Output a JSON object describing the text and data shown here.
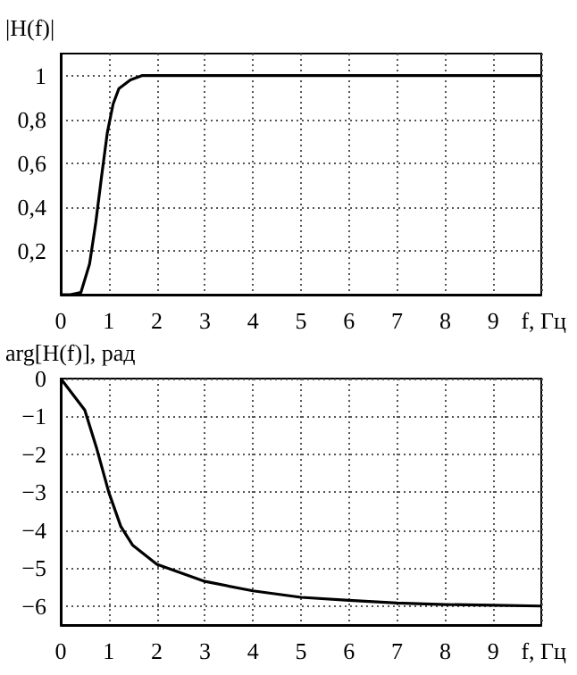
{
  "chart_data": [
    {
      "type": "line",
      "ylabel": "|H(f)|",
      "xlabel": "f, Гц",
      "grid": true,
      "x": [
        0,
        0.2,
        0.42,
        0.6,
        0.73,
        0.85,
        0.97,
        1.09,
        1.21,
        1.45,
        1.7,
        2,
        10
      ],
      "series": [
        {
          "color": "#000000",
          "values": [
            0,
            0,
            0.01,
            0.14,
            0.33,
            0.54,
            0.74,
            0.87,
            0.94,
            0.98,
            1.0,
            1.0,
            1.0
          ]
        }
      ],
      "xlim": [
        0,
        10
      ],
      "xticks": [
        0,
        1,
        2,
        3,
        4,
        5,
        6,
        7,
        8,
        9,
        {
          "value": 10,
          "label": null
        }
      ],
      "ylim": [
        0,
        1.1
      ],
      "yticks": [
        {
          "value": 0,
          "label": null
        },
        {
          "value": 0.2,
          "label": "0,2"
        },
        {
          "value": 0.4,
          "label": "0,4"
        },
        {
          "value": 0.6,
          "label": "0,6"
        },
        {
          "value": 0.8,
          "label": "0,8"
        },
        1
      ]
    },
    {
      "type": "line",
      "ylabel": "arg[H(f)], рад",
      "xlabel": "f, Гц",
      "grid": true,
      "x": [
        0,
        0.5,
        0.75,
        1,
        1.25,
        1.5,
        2,
        3,
        4,
        5,
        6,
        7,
        8,
        9,
        10
      ],
      "series": [
        {
          "color": "#000000",
          "values": [
            0,
            -0.83,
            -1.85,
            -3.0,
            -3.9,
            -4.4,
            -4.9,
            -5.35,
            -5.6,
            -5.77,
            -5.85,
            -5.92,
            -5.96,
            -5.98,
            -6.0
          ]
        }
      ],
      "xlim": [
        0,
        10
      ],
      "xticks": [
        0,
        1,
        2,
        3,
        4,
        5,
        6,
        7,
        8,
        9,
        {
          "value": 10,
          "label": null
        }
      ],
      "ylim": [
        -6.5,
        0
      ],
      "yticks": [
        {
          "value": -6,
          "label": "−6"
        },
        {
          "value": -5,
          "label": "−5"
        },
        {
          "value": -4,
          "label": "−4"
        },
        {
          "value": -3,
          "label": "−3"
        },
        {
          "value": -2,
          "label": "−2"
        },
        {
          "value": -1,
          "label": "−1"
        },
        0
      ]
    }
  ]
}
